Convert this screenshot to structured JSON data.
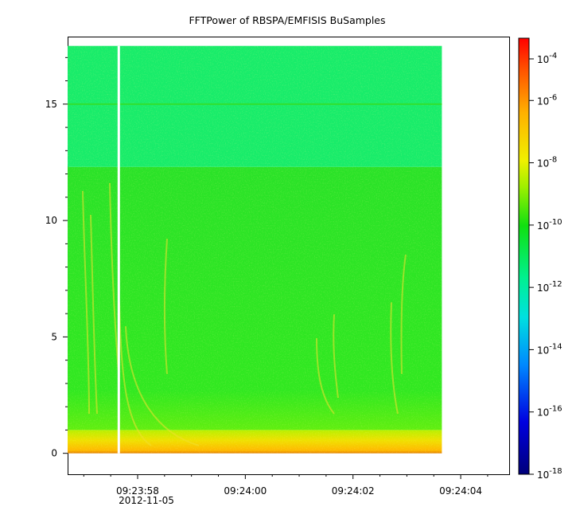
{
  "chart_data": {
    "type": "heatmap",
    "title": "FFTPower of RBSPA/EMFISIS  BuSamples",
    "xlabel": "",
    "ylabel": "",
    "date_label": "2012-11-05",
    "x_ticks": [
      {
        "t": 58,
        "label": "09:23:58"
      },
      {
        "t": 60,
        "label": "09:24:00"
      },
      {
        "t": 62,
        "label": "09:24:02"
      },
      {
        "t": 64,
        "label": "09:24:04"
      }
    ],
    "xlim_seconds_after_0923": [
      56.7,
      64.9
    ],
    "data_xrange_seconds_after_0923": [
      56.7,
      63.65
    ],
    "data_gap_seconds_after_0923": 57.65,
    "y_ticks": [
      0,
      5,
      10,
      15
    ],
    "ylim": [
      -0.9,
      17.9
    ],
    "data_yrange": [
      0,
      17.5
    ],
    "colorbar": {
      "scale": "log",
      "range": [
        1e-18,
        0.0001
      ],
      "ticks": [
        {
          "base": "10",
          "exp": "-4"
        },
        {
          "base": "10",
          "exp": "-6"
        },
        {
          "base": "10",
          "exp": "-8"
        },
        {
          "base": "10",
          "exp": "-10"
        },
        {
          "base": "10",
          "exp": "-12"
        },
        {
          "base": "10",
          "exp": "-14"
        },
        {
          "base": "10",
          "exp": "-16"
        },
        {
          "base": "10",
          "exp": "-18"
        }
      ]
    },
    "regions": [
      {
        "y_from": 12.3,
        "y_to": 17.5,
        "level": "1e-12"
      },
      {
        "y_from": 1.0,
        "y_to": 12.3,
        "level": "1e-10"
      },
      {
        "y_from": 0.0,
        "y_to": 1.0,
        "level": "1e-8"
      }
    ],
    "line_features": [
      {
        "y": 15.0,
        "level": "1e-10"
      }
    ],
    "grid": false,
    "legend": "colorbar-right"
  }
}
